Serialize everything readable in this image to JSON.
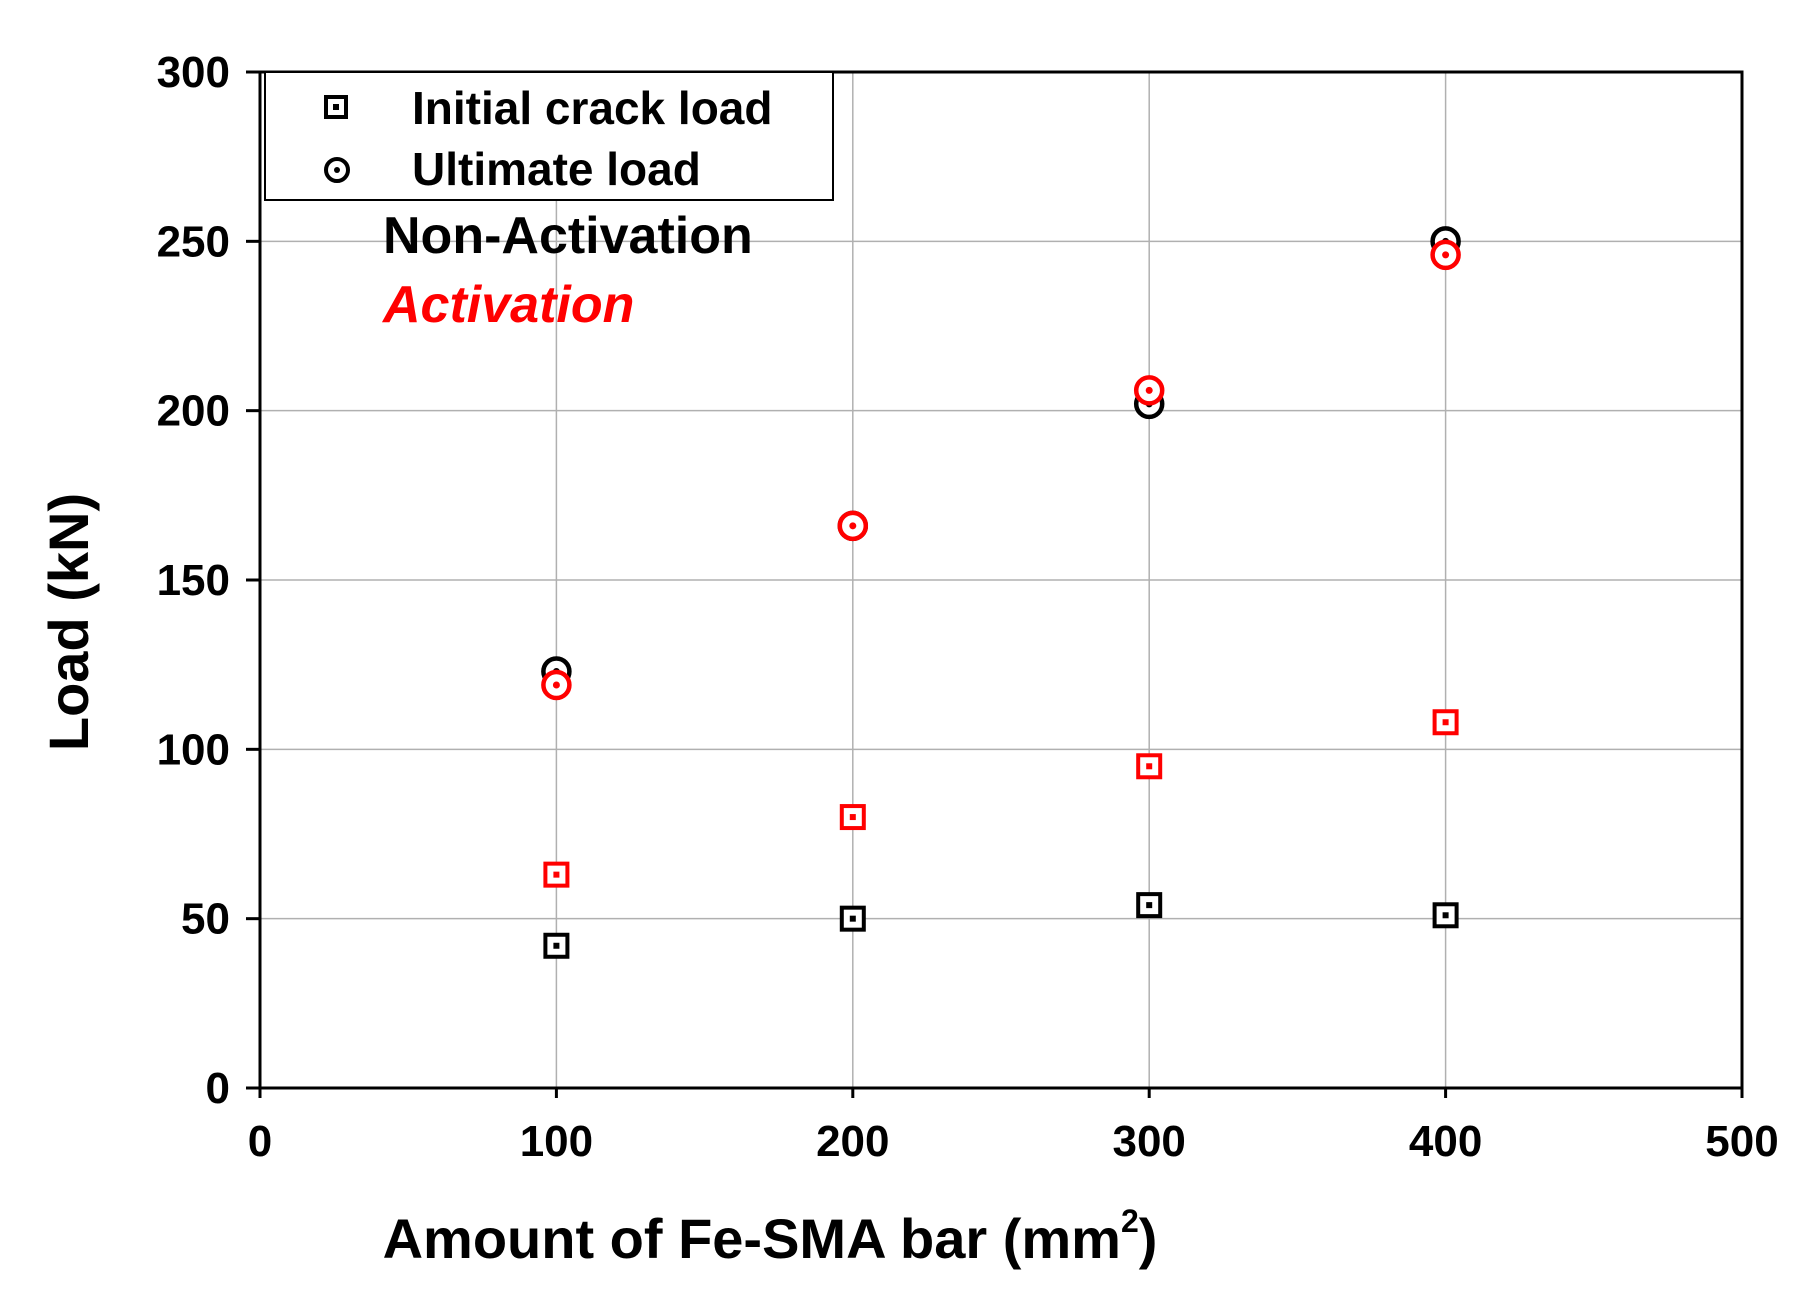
{
  "chart_data": {
    "type": "scatter",
    "title": "",
    "xlabel": "Amount of Fe-SMA bar (mm",
    "xlabel_superscript": "2",
    "xlabel_suffix": ")",
    "ylabel": "Load (kN)",
    "xlim": [
      0,
      500
    ],
    "ylim": [
      0,
      300
    ],
    "x_ticks": [
      0,
      100,
      200,
      300,
      400,
      500
    ],
    "y_ticks": [
      0,
      50,
      100,
      150,
      200,
      250,
      300
    ],
    "grid": true,
    "legend_position": "top-left",
    "legend": [
      {
        "label": "Initial crack load",
        "marker": "square"
      },
      {
        "label": "Ultimate load",
        "marker": "circle"
      }
    ],
    "annotations": [
      {
        "text": "Non-Activation",
        "color": "#000000",
        "style": "normal"
      },
      {
        "text": "Activation",
        "color": "#ff0000",
        "style": "italic"
      }
    ],
    "series": [
      {
        "name": "Initial crack load (Non-Activation)",
        "marker": "square",
        "color": "#000000",
        "x": [
          100,
          200,
          300,
          400
        ],
        "y": [
          42,
          50,
          54,
          51
        ]
      },
      {
        "name": "Initial crack load (Activation)",
        "marker": "square",
        "color": "#ff0000",
        "x": [
          100,
          200,
          300,
          400
        ],
        "y": [
          63,
          80,
          95,
          108
        ]
      },
      {
        "name": "Ultimate load (Non-Activation)",
        "marker": "circle",
        "color": "#000000",
        "x": [
          100,
          200,
          300,
          400
        ],
        "y": [
          123,
          166,
          202,
          250
        ]
      },
      {
        "name": "Ultimate load (Activation)",
        "marker": "circle",
        "color": "#ff0000",
        "x": [
          100,
          200,
          300,
          400
        ],
        "y": [
          119,
          166,
          206,
          246
        ]
      }
    ]
  }
}
